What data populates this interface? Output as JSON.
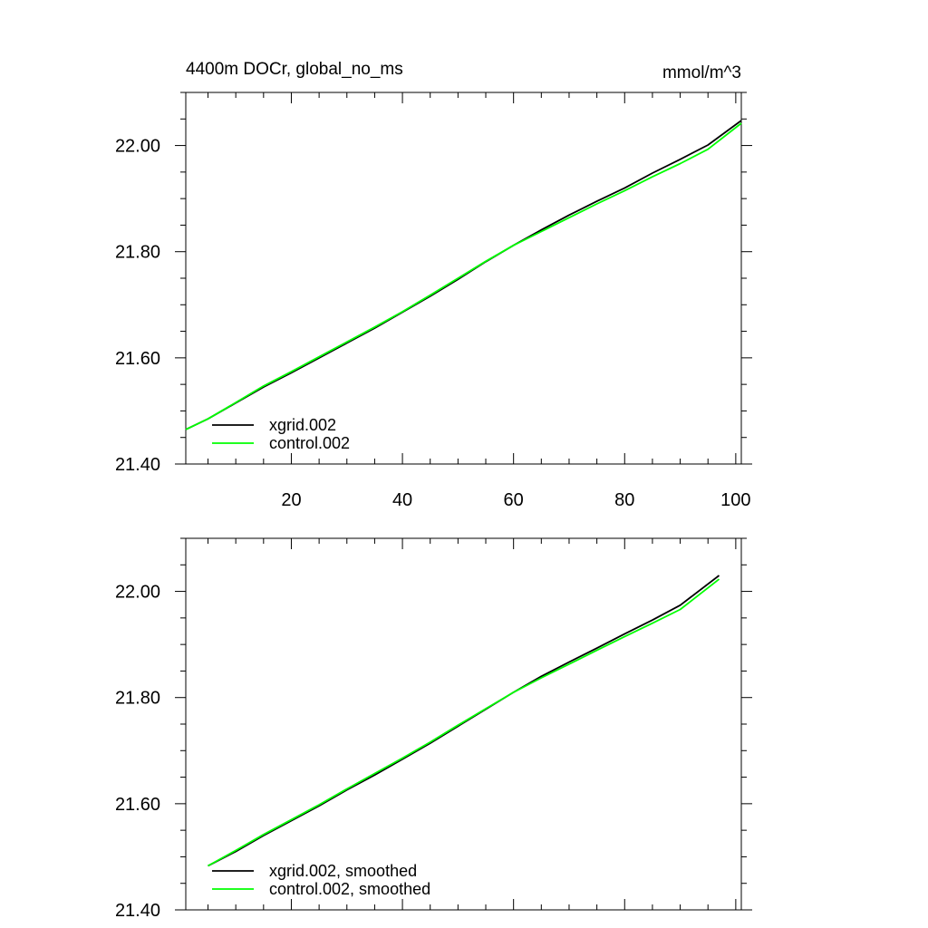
{
  "chart_data": [
    {
      "type": "line",
      "title": "4400m DOCr, global_no_ms",
      "unit_label": "mmol/m^3",
      "xlim": [
        1,
        101
      ],
      "ylim": [
        21.4,
        22.1
      ],
      "xticks": [
        20,
        40,
        60,
        80,
        100
      ],
      "xtick_labels": [
        "20",
        "40",
        "60",
        "80",
        "100"
      ],
      "yticks": [
        21.4,
        21.6,
        21.8,
        22.0
      ],
      "ytick_labels": [
        "21.40",
        "21.60",
        "21.80",
        "22.00"
      ],
      "x_labels_shown": true,
      "legend_position": "bottom-left",
      "series": [
        {
          "name": "xgrid.002",
          "color": "#000000",
          "x": [
            1,
            5,
            10,
            15,
            20,
            25,
            30,
            35,
            40,
            45,
            50,
            55,
            60,
            65,
            70,
            75,
            80,
            85,
            90,
            95,
            101
          ],
          "y": [
            21.465,
            21.485,
            21.515,
            21.545,
            21.572,
            21.6,
            21.628,
            21.656,
            21.686,
            21.716,
            21.748,
            21.781,
            21.812,
            21.841,
            21.869,
            21.895,
            21.92,
            21.948,
            21.974,
            22.001,
            22.047
          ]
        },
        {
          "name": "control.002",
          "color": "#00ff00",
          "x": [
            1,
            5,
            10,
            15,
            20,
            25,
            30,
            35,
            40,
            45,
            50,
            55,
            60,
            65,
            70,
            75,
            80,
            85,
            90,
            95,
            101
          ],
          "y": [
            21.465,
            21.485,
            21.516,
            21.547,
            21.574,
            21.602,
            21.63,
            21.658,
            21.687,
            21.718,
            21.75,
            21.782,
            21.812,
            21.838,
            21.864,
            21.89,
            21.915,
            21.941,
            21.966,
            21.993,
            22.042
          ]
        }
      ]
    },
    {
      "type": "line",
      "title": "",
      "unit_label": "",
      "xlim": [
        1,
        101
      ],
      "ylim": [
        21.4,
        22.1
      ],
      "xticks": [
        20,
        40,
        60,
        80,
        100
      ],
      "xtick_labels": [],
      "yticks": [
        21.4,
        21.6,
        21.8,
        22.0
      ],
      "ytick_labels": [
        "21.40",
        "21.60",
        "21.80",
        "22.00"
      ],
      "x_labels_shown": false,
      "legend_position": "bottom-left",
      "series": [
        {
          "name": "xgrid.002, smoothed",
          "color": "#000000",
          "x": [
            5,
            10,
            15,
            20,
            25,
            30,
            35,
            40,
            45,
            50,
            55,
            60,
            65,
            70,
            75,
            80,
            85,
            90,
            97
          ],
          "y": [
            21.483,
            21.51,
            21.54,
            21.568,
            21.596,
            21.626,
            21.654,
            21.684,
            21.714,
            21.746,
            21.778,
            21.81,
            21.84,
            21.867,
            21.893,
            21.92,
            21.946,
            21.974,
            22.03
          ]
        },
        {
          "name": "control.002, smoothed",
          "color": "#00ff00",
          "x": [
            5,
            10,
            15,
            20,
            25,
            30,
            35,
            40,
            45,
            50,
            55,
            60,
            65,
            70,
            75,
            80,
            85,
            90,
            97
          ],
          "y": [
            21.483,
            21.512,
            21.542,
            21.57,
            21.598,
            21.628,
            21.657,
            21.686,
            21.716,
            21.748,
            21.779,
            21.81,
            21.837,
            21.863,
            21.889,
            21.915,
            21.94,
            21.966,
            22.023
          ]
        }
      ]
    }
  ]
}
